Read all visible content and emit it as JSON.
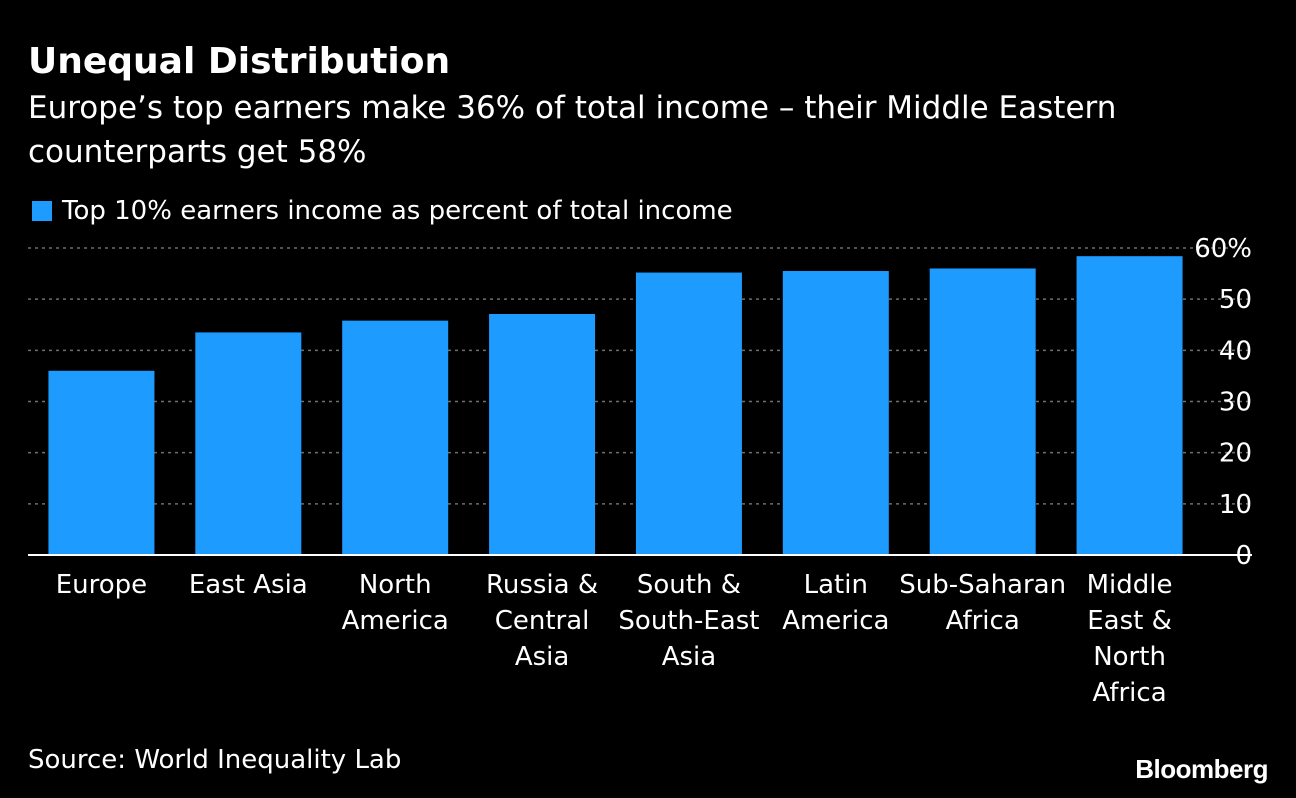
{
  "header": {
    "title": "Unequal Distribution",
    "subtitle": "Europe’s top earners make 36% of total income – their Middle Eastern counterparts get 58%"
  },
  "footer": {
    "source": "Source: World Inequality Lab",
    "brand": "Bloomberg"
  },
  "colors": {
    "background": "#000000",
    "bar": "#1e9bff",
    "text": "#ffffff",
    "grid": "#6e6e6e"
  },
  "chart_data": {
    "type": "bar",
    "title": "Unequal Distribution",
    "subtitle": "Europe’s top earners make 36% of total income – their Middle Eastern counterparts get 58%",
    "categories": [
      [
        "Europe"
      ],
      [
        "East Asia"
      ],
      [
        "North",
        "America"
      ],
      [
        "Russia &",
        "Central",
        "Asia"
      ],
      [
        "South &",
        "South-East",
        "Asia"
      ],
      [
        "Latin",
        "America"
      ],
      [
        "Sub-Saharan",
        "Africa"
      ],
      [
        "Middle",
        "East &",
        "North",
        "Africa"
      ]
    ],
    "series": [
      {
        "name": "Top 10% earners income as percent of total income",
        "values": [
          36,
          43.5,
          45.8,
          47.1,
          55.2,
          55.5,
          56,
          58.4
        ]
      }
    ],
    "ylim": [
      0,
      60
    ],
    "yticks": [
      "0",
      "10",
      "20",
      "30",
      "40",
      "50",
      "60%"
    ],
    "ytick_values": [
      0,
      10,
      20,
      30,
      40,
      50,
      60
    ],
    "y_axis_side": "right",
    "grid": true,
    "legend_position": "top-left"
  }
}
